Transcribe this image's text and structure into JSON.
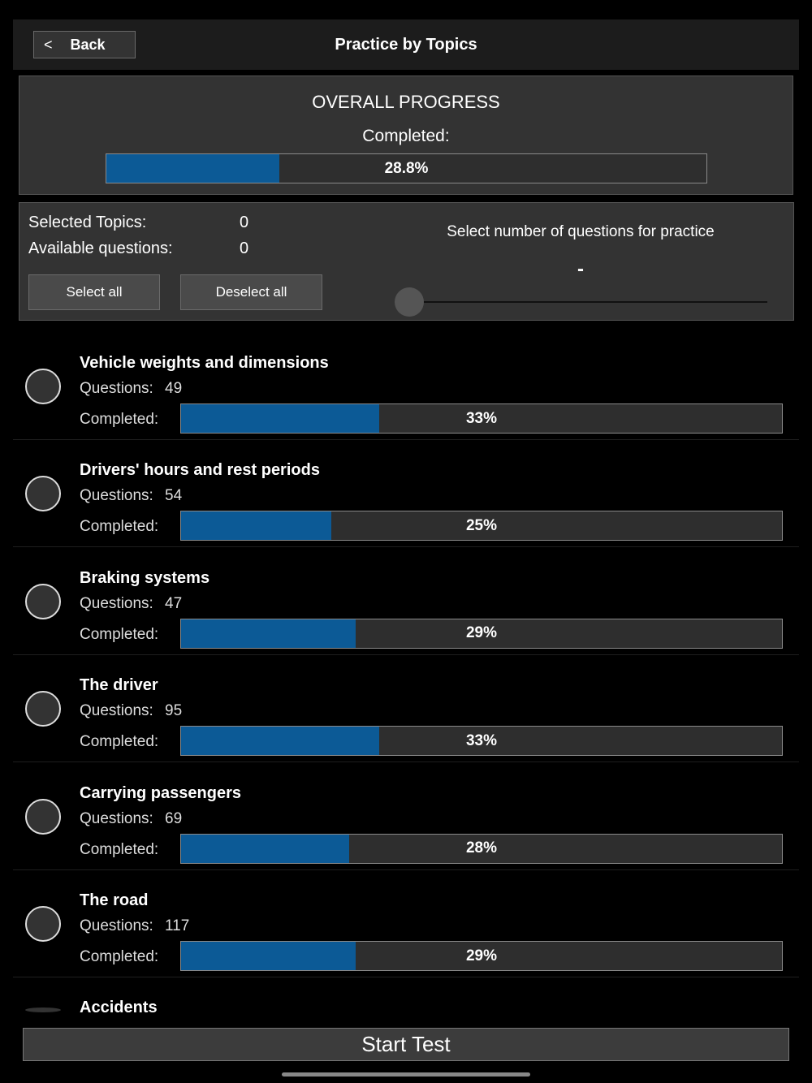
{
  "header": {
    "back": "Back",
    "title": "Practice by Topics"
  },
  "overall": {
    "title": "OVERALL PROGRESS",
    "completed_label": "Completed:",
    "progress": {
      "value": 28.8,
      "label": "28.8%"
    }
  },
  "selection": {
    "selected_label": "Selected Topics:",
    "selected": 0,
    "available_label": "Available questions:",
    "available": 0,
    "select_all": "Select all",
    "deselect_all": "Deselect all",
    "count_label": "Select number of questions for practice",
    "count": "-"
  },
  "topic_labels": {
    "questions": "Questions:",
    "completed": "Completed:"
  },
  "topics": [
    {
      "name": "Vehicle weights and dimensions",
      "questions": 49,
      "completed": {
        "value": 33,
        "label": "33%"
      }
    },
    {
      "name": "Drivers' hours and rest periods",
      "questions": 54,
      "completed": {
        "value": 25,
        "label": "25%"
      }
    },
    {
      "name": "Braking systems",
      "questions": 47,
      "completed": {
        "value": 29,
        "label": "29%"
      }
    },
    {
      "name": "The driver",
      "questions": 95,
      "completed": {
        "value": 33,
        "label": "33%"
      }
    },
    {
      "name": "Carrying passengers",
      "questions": 69,
      "completed": {
        "value": 28,
        "label": "28%"
      }
    },
    {
      "name": "The road",
      "questions": 117,
      "completed": {
        "value": 29,
        "label": "29%"
      }
    },
    {
      "name": "Accidents"
    }
  ],
  "start_button": "Start Test"
}
